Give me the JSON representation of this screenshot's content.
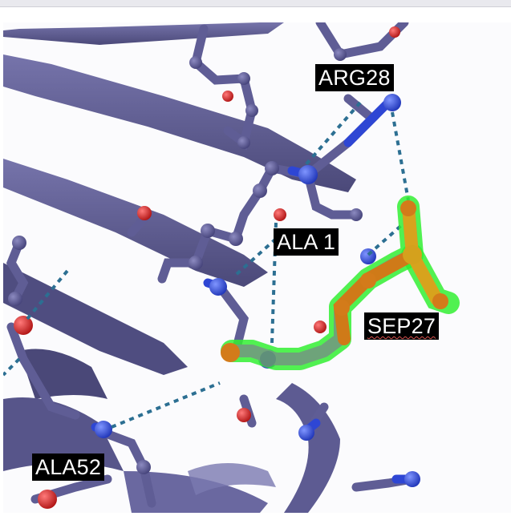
{
  "labels": {
    "arg28": "ARG28",
    "ala1": "ALA 1",
    "sep27": "SEP27",
    "ala52": "ALA52"
  },
  "colors": {
    "protein": "#5d5b92",
    "protein_dark": "#4a4878",
    "nitrogen": "#2f47d6",
    "oxygen": "#d22323",
    "highlight": "#33ee33",
    "phospho": "#d6a21e",
    "hbond": "#2c6f92"
  }
}
